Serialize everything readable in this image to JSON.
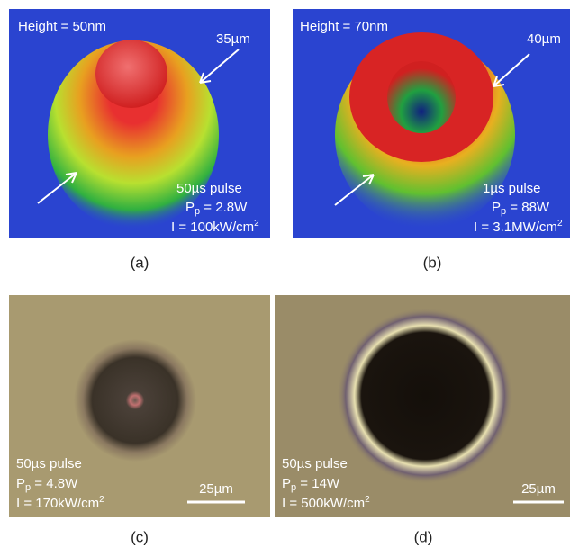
{
  "panels": [
    {
      "caption": "(a)",
      "height_label": "Height = 50nm",
      "size_label": "35µm",
      "pulse": "50µs pulse",
      "power": {
        "symbol": "P",
        "subscript": "p",
        "value": " = 2.8W"
      },
      "intensity": {
        "text": "I = 100kW/cm",
        "superscript": "2"
      }
    },
    {
      "caption": "(b)",
      "height_label": "Height = 70nm",
      "size_label": "40µm",
      "pulse": "1µs pulse",
      "power": {
        "symbol": "P",
        "subscript": "p",
        "value": " = 88W"
      },
      "intensity": {
        "text": "I = 3.1MW/cm",
        "superscript": "2"
      }
    },
    {
      "caption": "(c)",
      "pulse": "50µs pulse",
      "power": {
        "symbol": "P",
        "subscript": "p",
        "value": " = 4.8W"
      },
      "intensity": {
        "text": "I = 170kW/cm",
        "superscript": "2"
      },
      "scale_bar": "25µm"
    },
    {
      "caption": "(d)",
      "pulse": "50µs pulse",
      "power": {
        "symbol": "P",
        "subscript": "p",
        "value": " = 14W"
      },
      "intensity": {
        "text": "I = 500kW/cm",
        "superscript": "2"
      },
      "scale_bar": "25µm"
    }
  ]
}
